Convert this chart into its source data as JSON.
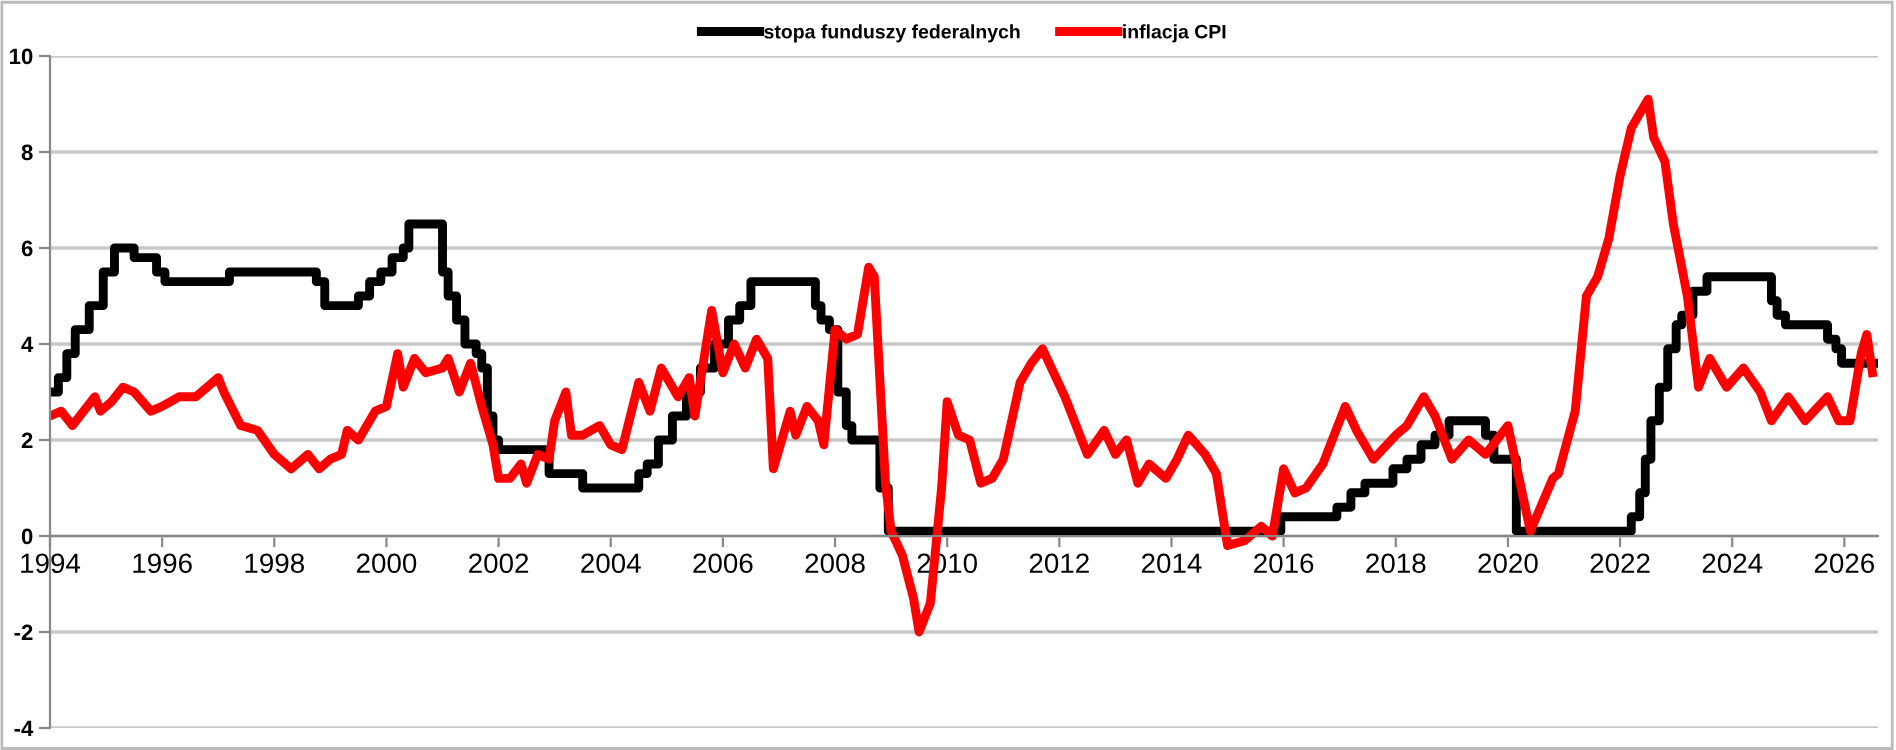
{
  "chart_data": {
    "type": "line",
    "xlim": [
      1994,
      2026.6
    ],
    "xticks": [
      1994,
      1996,
      1998,
      2000,
      2002,
      2004,
      2006,
      2008,
      2010,
      2012,
      2014,
      2016,
      2018,
      2020,
      2022,
      2024,
      2026
    ],
    "ylim": [
      -4,
      10
    ],
    "yticks": [
      -4,
      -2,
      0,
      2,
      4,
      6,
      8,
      10
    ],
    "grid": "y",
    "legend": "top",
    "series": [
      {
        "name": "stopa funduszy federalnych",
        "color": "#000000",
        "type": "step",
        "x": [
          1994.0,
          1994.15,
          1994.3,
          1994.45,
          1994.7,
          1994.95,
          1995.15,
          1995.5,
          1995.9,
          1996.05,
          1997.2,
          1998.75,
          1998.9,
          1999.5,
          1999.7,
          1999.9,
          2000.1,
          2000.3,
          2000.4,
          2001.0,
          2001.1,
          2001.25,
          2001.4,
          2001.6,
          2001.7,
          2001.8,
          2001.9,
          2002.0,
          2002.9,
          2003.5,
          2004.5,
          2004.65,
          2004.85,
          2005.1,
          2005.35,
          2005.6,
          2005.85,
          2006.1,
          2006.3,
          2006.5,
          2007.65,
          2007.75,
          2007.9,
          2008.05,
          2008.2,
          2008.3,
          2008.8,
          2008.95,
          2015.95,
          2016.95,
          2017.2,
          2017.45,
          2017.95,
          2018.2,
          2018.45,
          2018.7,
          2018.95,
          2019.6,
          2019.75,
          2020.15,
          2022.2,
          2022.35,
          2022.45,
          2022.55,
          2022.7,
          2022.85,
          2023.0,
          2023.1,
          2023.3,
          2023.55,
          2024.7,
          2024.8,
          2024.95,
          2025.7,
          2025.85,
          2025.95,
          2026.6
        ],
        "values": [
          3.0,
          3.3,
          3.8,
          4.3,
          4.8,
          5.5,
          6.0,
          5.8,
          5.5,
          5.3,
          5.5,
          5.3,
          4.8,
          5.0,
          5.3,
          5.5,
          5.8,
          6.0,
          6.5,
          5.5,
          5.0,
          4.5,
          4.0,
          3.8,
          3.5,
          2.5,
          2.0,
          1.8,
          1.3,
          1.0,
          1.3,
          1.5,
          2.0,
          2.5,
          3.0,
          3.5,
          4.0,
          4.5,
          4.8,
          5.3,
          4.8,
          4.5,
          4.3,
          3.0,
          2.3,
          2.0,
          1.0,
          0.1,
          0.4,
          0.6,
          0.9,
          1.1,
          1.4,
          1.6,
          1.9,
          2.1,
          2.4,
          2.1,
          1.6,
          0.1,
          0.4,
          0.9,
          1.6,
          2.4,
          3.1,
          3.9,
          4.4,
          4.6,
          5.1,
          5.4,
          4.9,
          4.6,
          4.4,
          4.1,
          3.9,
          3.6,
          3.6
        ]
      },
      {
        "name": "inflacja CPI",
        "color": "#ff0000",
        "x": [
          1994.0,
          1994.2,
          1994.4,
          1994.8,
          1994.9,
          1995.1,
          1995.3,
          1995.5,
          1995.8,
          1996.0,
          1996.3,
          1996.6,
          1997.0,
          1997.1,
          1997.4,
          1997.7,
          1998.0,
          1998.3,
          1998.6,
          1998.8,
          1999.0,
          1999.2,
          1999.3,
          1999.5,
          1999.8,
          2000.0,
          2000.2,
          2000.3,
          2000.5,
          2000.7,
          2001.0,
          2001.1,
          2001.3,
          2001.5,
          2001.7,
          2001.9,
          2002.0,
          2002.2,
          2002.4,
          2002.5,
          2002.7,
          2002.9,
          2003.0,
          2003.2,
          2003.3,
          2003.5,
          2003.8,
          2004.0,
          2004.2,
          2004.5,
          2004.7,
          2004.9,
          2005.2,
          2005.4,
          2005.5,
          2005.8,
          2006.0,
          2006.2,
          2006.4,
          2006.6,
          2006.8,
          2006.9,
          2007.2,
          2007.3,
          2007.5,
          2007.7,
          2007.8,
          2008.0,
          2008.2,
          2008.4,
          2008.6,
          2008.7,
          2008.9,
          2009.0,
          2009.2,
          2009.4,
          2009.5,
          2009.7,
          2009.9,
          2010.0,
          2010.2,
          2010.4,
          2010.6,
          2010.8,
          2011.0,
          2011.3,
          2011.5,
          2011.7,
          2011.9,
          2012.1,
          2012.3,
          2012.5,
          2012.8,
          2013.0,
          2013.2,
          2013.4,
          2013.6,
          2013.9,
          2014.1,
          2014.3,
          2014.6,
          2014.8,
          2015.0,
          2015.3,
          2015.6,
          2015.8,
          2016.0,
          2016.2,
          2016.4,
          2016.7,
          2017.1,
          2017.3,
          2017.6,
          2018.0,
          2018.2,
          2018.5,
          2018.7,
          2019.0,
          2019.3,
          2019.6,
          2020.0,
          2020.4,
          2020.8,
          2020.9,
          2021.2,
          2021.4,
          2021.6,
          2021.8,
          2022.0,
          2022.2,
          2022.5,
          2022.6,
          2022.8,
          2022.95,
          2023.2,
          2023.4,
          2023.6,
          2023.9,
          2024.2,
          2024.5,
          2024.7,
          2025.0,
          2025.3,
          2025.7,
          2025.9,
          2026.1,
          2026.3,
          2026.4,
          2026.5
        ],
        "values": [
          2.5,
          2.6,
          2.3,
          2.9,
          2.6,
          2.8,
          3.1,
          3.0,
          2.6,
          2.7,
          2.9,
          2.9,
          3.3,
          3.0,
          2.3,
          2.2,
          1.7,
          1.4,
          1.7,
          1.4,
          1.6,
          1.7,
          2.2,
          2.0,
          2.6,
          2.7,
          3.8,
          3.1,
          3.7,
          3.4,
          3.5,
          3.7,
          3.0,
          3.6,
          2.7,
          1.9,
          1.2,
          1.2,
          1.5,
          1.1,
          1.7,
          1.6,
          2.4,
          3.0,
          2.1,
          2.1,
          2.3,
          1.9,
          1.8,
          3.2,
          2.6,
          3.5,
          2.9,
          3.3,
          2.5,
          4.7,
          3.4,
          4.0,
          3.5,
          4.1,
          3.7,
          1.4,
          2.6,
          2.1,
          2.7,
          2.4,
          1.9,
          4.3,
          4.1,
          4.2,
          5.6,
          5.4,
          1.1,
          0.1,
          -0.4,
          -1.3,
          -2.0,
          -1.4,
          1.0,
          2.8,
          2.1,
          2.0,
          1.1,
          1.2,
          1.6,
          3.2,
          3.6,
          3.9,
          3.4,
          2.9,
          2.3,
          1.7,
          2.2,
          1.7,
          2.0,
          1.1,
          1.5,
          1.2,
          1.6,
          2.1,
          1.7,
          1.3,
          -0.2,
          -0.1,
          0.2,
          0.0,
          1.4,
          0.9,
          1.0,
          1.5,
          2.7,
          2.2,
          1.6,
          2.1,
          2.3,
          2.9,
          2.5,
          1.6,
          2.0,
          1.7,
          2.3,
          0.1,
          1.2,
          1.3,
          2.6,
          5.0,
          5.4,
          6.2,
          7.5,
          8.5,
          9.1,
          8.3,
          7.8,
          6.5,
          5.0,
          3.1,
          3.7,
          3.1,
          3.5,
          3.0,
          2.4,
          2.9,
          2.4,
          2.9,
          2.4,
          2.4,
          3.8,
          4.2,
          3.4
        ]
      }
    ]
  }
}
